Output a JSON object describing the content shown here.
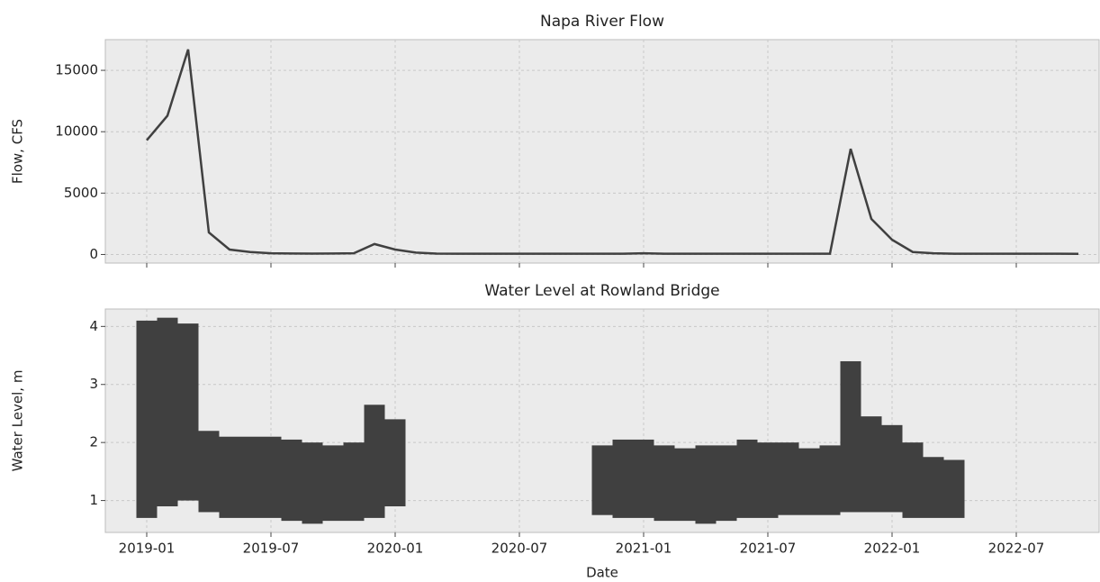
{
  "chart_data": [
    {
      "type": "line",
      "title": "Napa River Flow",
      "ylabel": "Flow, CFS",
      "color": "#404040",
      "grid": true,
      "show_xtick_labels": false,
      "x": [
        "2019-01",
        "2019-02",
        "2019-03",
        "2019-04",
        "2019-05",
        "2019-06",
        "2019-07",
        "2019-08",
        "2019-09",
        "2019-10",
        "2019-11",
        "2019-12",
        "2020-01",
        "2020-02",
        "2020-03",
        "2020-04",
        "2020-05",
        "2020-06",
        "2020-07",
        "2020-08",
        "2020-09",
        "2020-10",
        "2020-11",
        "2020-12",
        "2021-01",
        "2021-02",
        "2021-03",
        "2021-04",
        "2021-05",
        "2021-06",
        "2021-07",
        "2021-08",
        "2021-09",
        "2021-10",
        "2021-11",
        "2021-12",
        "2022-01",
        "2022-02",
        "2022-03",
        "2022-04",
        "2022-05",
        "2022-06",
        "2022-07",
        "2022-08",
        "2022-09",
        "2022-10"
      ],
      "series": [
        {
          "values": [
            9300,
            11300,
            16700,
            1800,
            400,
            200,
            100,
            80,
            70,
            80,
            100,
            850,
            400,
            150,
            70,
            60,
            60,
            60,
            60,
            60,
            60,
            60,
            60,
            60,
            100,
            60,
            60,
            60,
            60,
            60,
            60,
            60,
            60,
            60,
            8600,
            2900,
            1200,
            200,
            100,
            60,
            60,
            60,
            60,
            60,
            60,
            50
          ]
        }
      ],
      "xlim": [
        "2018-11",
        "2022-11"
      ],
      "xticks": [
        "2019-01",
        "2019-07",
        "2020-01",
        "2020-07",
        "2021-01",
        "2021-07",
        "2022-01",
        "2022-07"
      ],
      "ylim": [
        -700,
        17500
      ],
      "yticks": [
        0,
        5000,
        10000,
        15000
      ]
    },
    {
      "type": "band",
      "title": "Water Level at Rowland Bridge",
      "ylabel": "Water Level, m",
      "xlabel": "Date",
      "color": "#404040",
      "grid": true,
      "show_xtick_labels": true,
      "x": [
        "2019-01",
        "2019-02",
        "2019-03",
        "2019-04",
        "2019-05",
        "2019-06",
        "2019-07",
        "2019-08",
        "2019-09",
        "2019-10",
        "2019-11",
        "2019-12",
        "2020-01",
        "2020-02",
        "2020-03",
        "2020-04",
        "2020-05",
        "2020-06",
        "2020-07",
        "2020-08",
        "2020-09",
        "2020-10",
        "2020-11",
        "2020-12",
        "2021-01",
        "2021-02",
        "2021-03",
        "2021-04",
        "2021-05",
        "2021-06",
        "2021-07",
        "2021-08",
        "2021-09",
        "2021-10",
        "2021-11",
        "2021-12",
        "2022-01",
        "2022-02",
        "2022-03",
        "2022-04",
        "2022-05",
        "2022-06",
        "2022-07",
        "2022-08",
        "2022-09",
        "2022-10"
      ],
      "series": [
        {
          "values": [
            0.7,
            0.9,
            1.0,
            0.8,
            0.7,
            0.7,
            0.7,
            0.65,
            0.6,
            0.65,
            0.65,
            0.7,
            0.9,
            null,
            null,
            null,
            null,
            null,
            null,
            null,
            null,
            null,
            0.75,
            0.7,
            0.7,
            0.65,
            0.65,
            0.6,
            0.65,
            0.7,
            0.7,
            0.75,
            0.75,
            0.75,
            0.8,
            0.8,
            0.8,
            0.7,
            0.7,
            0.7,
            null,
            null,
            null,
            null,
            null,
            null
          ]
        },
        {
          "values": [
            4.1,
            4.15,
            4.05,
            2.2,
            2.1,
            2.1,
            2.1,
            2.05,
            2.0,
            1.95,
            2.0,
            2.65,
            2.4,
            null,
            null,
            null,
            null,
            null,
            null,
            null,
            null,
            null,
            1.95,
            2.05,
            2.05,
            1.95,
            1.9,
            1.95,
            1.95,
            2.05,
            2.0,
            2.0,
            1.9,
            1.95,
            3.4,
            2.45,
            2.3,
            2.0,
            1.75,
            1.7,
            null,
            null,
            null,
            null,
            null,
            null
          ]
        }
      ],
      "xlim": [
        "2018-11",
        "2022-11"
      ],
      "xticks": [
        "2019-01",
        "2019-07",
        "2020-01",
        "2020-07",
        "2021-01",
        "2021-07",
        "2022-01",
        "2022-07"
      ],
      "ylim": [
        0.45,
        4.3
      ],
      "yticks": [
        1,
        2,
        3,
        4
      ]
    }
  ]
}
